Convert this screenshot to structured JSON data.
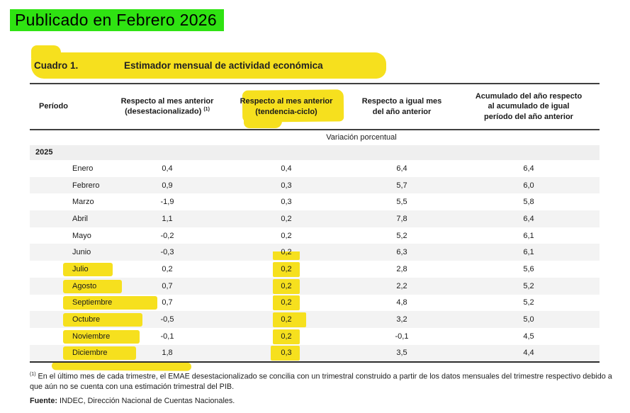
{
  "annotation": {
    "published_label": "Publicado en Febrero 2026",
    "green_color": "#2fe312",
    "yellow_color": "#f6e01e"
  },
  "table": {
    "label": "Cuadro 1.",
    "title": "Estimador mensual de actividad económica",
    "columns": {
      "c1": {
        "line1": "Período"
      },
      "c2": {
        "line1": "Respecto al mes anterior",
        "line2": "(desestacionalizado)",
        "sup": "(1)"
      },
      "c3": {
        "line1": "Respecto al mes anterior",
        "line2": "(tendencia-ciclo)"
      },
      "c4": {
        "line1": "Respecto a igual mes",
        "line2": "del año anterior"
      },
      "c5": {
        "line1": "Acumulado del año respecto",
        "line2": "al acumulado de igual",
        "line3": "período del año anterior"
      }
    },
    "unit_label": "Variación porcentual",
    "year": "2025",
    "rows": [
      {
        "month": "Enero",
        "desest": "0,4",
        "tc": "0,4",
        "igual_mes": "6,4",
        "acumulado": "6,4",
        "month_hl": false,
        "tc_hl": false
      },
      {
        "month": "Febrero",
        "desest": "0,9",
        "tc": "0,3",
        "igual_mes": "5,7",
        "acumulado": "6,0",
        "month_hl": false,
        "tc_hl": false
      },
      {
        "month": "Marzo",
        "desest": "-1,9",
        "tc": "0,3",
        "igual_mes": "5,5",
        "acumulado": "5,8",
        "month_hl": false,
        "tc_hl": false
      },
      {
        "month": "Abril",
        "desest": "1,1",
        "tc": "0,2",
        "igual_mes": "7,8",
        "acumulado": "6,4",
        "month_hl": false,
        "tc_hl": false
      },
      {
        "month": "Mayo",
        "desest": "-0,2",
        "tc": "0,2",
        "igual_mes": "5,2",
        "acumulado": "6,1",
        "month_hl": false,
        "tc_hl": false
      },
      {
        "month": "Junio",
        "desest": "-0,3",
        "tc": "0,2",
        "igual_mes": "6,3",
        "acumulado": "6,1",
        "month_hl": false,
        "tc_hl": "partial"
      },
      {
        "month": "Julio",
        "desest": "0,2",
        "tc": "0,2",
        "igual_mes": "2,8",
        "acumulado": "5,6",
        "month_hl": true,
        "tc_hl": true
      },
      {
        "month": "Agosto",
        "desest": "0,7",
        "tc": "0,2",
        "igual_mes": "2,2",
        "acumulado": "5,2",
        "month_hl": true,
        "tc_hl": true
      },
      {
        "month": "Septiembre",
        "desest": "0,7",
        "tc": "0,2",
        "igual_mes": "4,8",
        "acumulado": "5,2",
        "month_hl": true,
        "tc_hl": true
      },
      {
        "month": "Octubre",
        "desest": "-0,5",
        "tc": "0,2",
        "igual_mes": "3,2",
        "acumulado": "5,0",
        "month_hl": true,
        "tc_hl": true
      },
      {
        "month": "Noviembre",
        "desest": "-0,1",
        "tc": "0,2",
        "igual_mes": "-0,1",
        "acumulado": "4,5",
        "month_hl": true,
        "tc_hl": true
      },
      {
        "month": "Diciembre",
        "desest": "1,8",
        "tc": "0,3",
        "igual_mes": "3,5",
        "acumulado": "4,4",
        "month_hl": true,
        "tc_hl": true
      }
    ]
  },
  "footnote": {
    "sup": "(1)",
    "text": " En el último mes de cada trimestre, el EMAE desestacionalizado se concilia con un trimestral construido a partir de los datos mensuales del trimestre respectivo debido a que aún no se cuenta con una estimación trimestral del PIB."
  },
  "source": {
    "label": "Fuente:",
    "text": " INDEC, Dirección Nacional de Cuentas Nacionales."
  }
}
